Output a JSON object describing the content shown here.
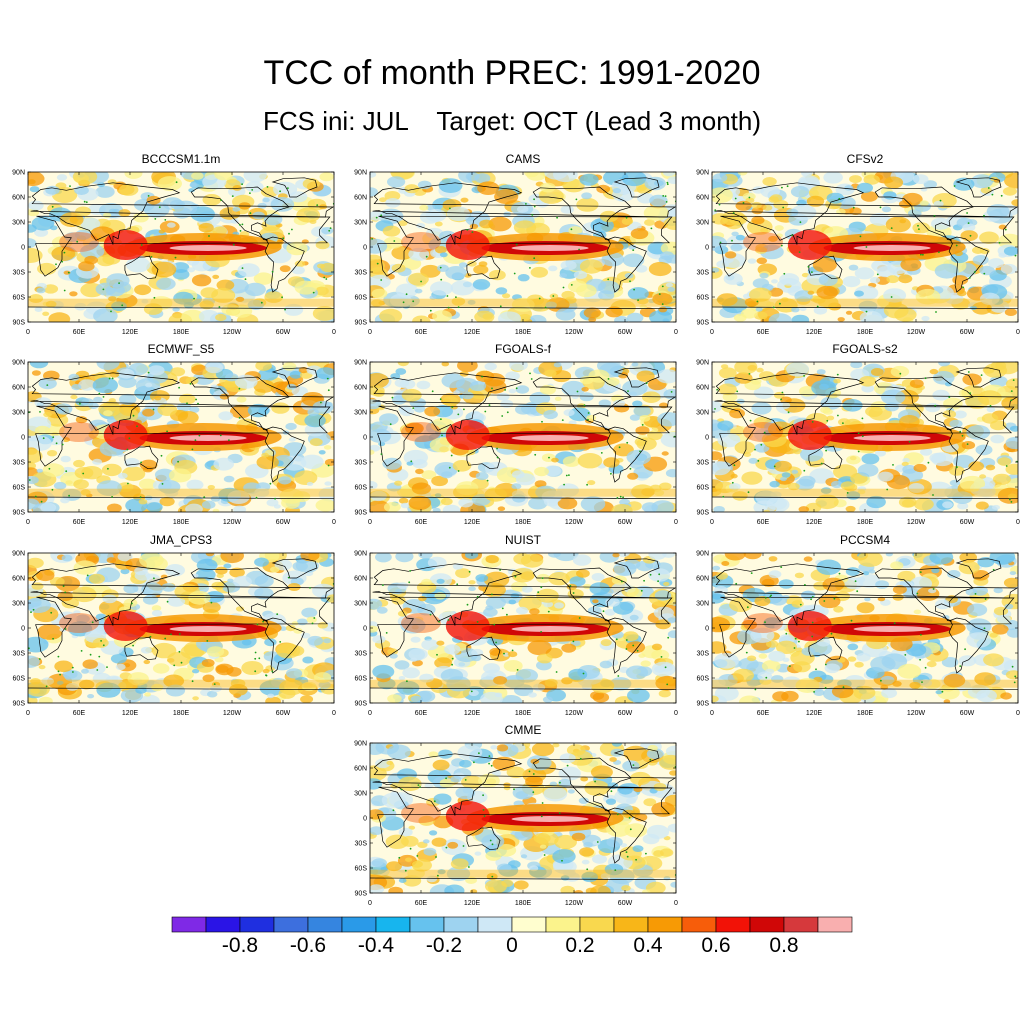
{
  "title": "TCC of month PREC: 1991-2020",
  "subtitle": "FCS ini: JUL    Target: OCT (Lead 3 month)",
  "chart_data": {
    "type": "heatmap",
    "variable": "Temporal correlation coefficient of precipitation",
    "lat_ticks": [
      "90N",
      "60N",
      "30N",
      "0",
      "30S",
      "60S",
      "90S"
    ],
    "lon_ticks": [
      "0",
      "60E",
      "120E",
      "180E",
      "120W",
      "60W",
      "0"
    ],
    "lat_range": [
      -90,
      90
    ],
    "lon_range": [
      0,
      360
    ],
    "panels": [
      {
        "name": "BCCCSM1.1m"
      },
      {
        "name": "CAMS"
      },
      {
        "name": "CFSv2"
      },
      {
        "name": "ECMWF_S5"
      },
      {
        "name": "FGOALS-f"
      },
      {
        "name": "FGOALS-s2"
      },
      {
        "name": "JMA_CPS3"
      },
      {
        "name": "NUIST"
      },
      {
        "name": "PCCSM4"
      },
      {
        "name": "CMME"
      }
    ],
    "colorbar": {
      "levels": [
        -0.9,
        -0.8,
        -0.7,
        -0.6,
        -0.5,
        -0.4,
        -0.3,
        -0.2,
        -0.1,
        0,
        0.1,
        0.2,
        0.3,
        0.4,
        0.5,
        0.6,
        0.7,
        0.8,
        0.9
      ],
      "colors": [
        "#7f29e6",
        "#2a14e6",
        "#1f2fe0",
        "#3d6fde",
        "#3585e0",
        "#2a9ae8",
        "#17b5ee",
        "#66c2ee",
        "#9ed3f0",
        "#cfe8f6",
        "#fffecf",
        "#fbf38c",
        "#f9d84e",
        "#f8b618",
        "#f79a05",
        "#f75d0a",
        "#f21207",
        "#d00707",
        "#d6393c",
        "#f9afaf"
      ],
      "labels": [
        "-0.8",
        "-0.6",
        "-0.4",
        "-0.2",
        "0",
        "0.2",
        "0.4",
        "0.6",
        "0.8"
      ]
    }
  }
}
